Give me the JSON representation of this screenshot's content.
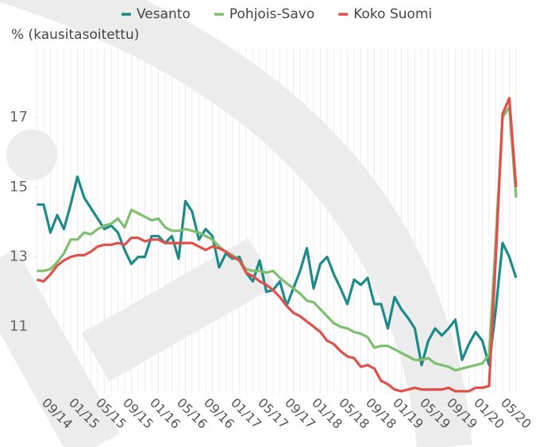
{
  "chart_data": {
    "type": "line",
    "y_label": "% (kausitasoitettu)",
    "categories": [
      null,
      "09/14",
      null,
      null,
      null,
      "01/15",
      null,
      null,
      null,
      "05/15",
      null,
      null,
      null,
      "09/15",
      null,
      null,
      null,
      "01/16",
      null,
      null,
      null,
      "05/16",
      null,
      null,
      null,
      "09/16",
      null,
      null,
      null,
      "01/17",
      null,
      null,
      null,
      "05/17",
      null,
      null,
      null,
      "09/17",
      null,
      null,
      null,
      "01/18",
      null,
      null,
      null,
      "05/18",
      null,
      null,
      null,
      "09/18",
      null,
      null,
      null,
      "01/19",
      null,
      null,
      null,
      "05/19",
      null,
      null,
      null,
      "09/19",
      null,
      null,
      null,
      "01/20",
      null,
      null,
      null,
      "05/20",
      null,
      null
    ],
    "series": [
      {
        "name": "Vesanto",
        "color": "#1b8b8a",
        "values": [
          14.5,
          14.5,
          13.7,
          14.2,
          13.8,
          14.5,
          15.3,
          14.7,
          14.4,
          14.1,
          13.8,
          13.9,
          13.7,
          13.2,
          12.8,
          13.0,
          13.0,
          13.6,
          13.6,
          13.4,
          13.6,
          12.95,
          14.6,
          14.3,
          13.5,
          13.8,
          13.6,
          12.7,
          13.1,
          12.95,
          13.0,
          12.55,
          12.3,
          12.9,
          12.0,
          12.05,
          12.3,
          11.6,
          12.1,
          12.6,
          13.25,
          12.1,
          12.8,
          13.0,
          12.5,
          12.1,
          11.65,
          12.35,
          12.2,
          12.4,
          11.65,
          11.65,
          10.95,
          11.85,
          11.5,
          11.25,
          10.95,
          9.9,
          10.6,
          10.95,
          10.75,
          10.95,
          11.2,
          10.05,
          10.5,
          10.85,
          10.6,
          9.9,
          11.5,
          13.4,
          13.0,
          12.4
        ]
      },
      {
        "name": "Pohjois-Savo",
        "color": "#7dbf6e",
        "values": [
          12.6,
          12.6,
          12.65,
          12.85,
          13.1,
          13.5,
          13.5,
          13.7,
          13.65,
          13.8,
          13.9,
          13.95,
          14.1,
          13.85,
          14.35,
          14.25,
          14.15,
          14.05,
          14.1,
          13.85,
          13.75,
          13.75,
          13.8,
          13.75,
          13.7,
          13.6,
          13.5,
          13.3,
          13.15,
          13.05,
          12.9,
          12.65,
          12.6,
          12.6,
          12.55,
          12.6,
          12.4,
          12.25,
          12.1,
          11.95,
          11.75,
          11.7,
          11.5,
          11.3,
          11.1,
          11.0,
          10.95,
          10.85,
          10.8,
          10.7,
          10.4,
          10.45,
          10.45,
          10.35,
          10.25,
          10.15,
          10.05,
          10.05,
          10.1,
          9.95,
          9.9,
          9.85,
          9.75,
          9.8,
          9.85,
          9.9,
          9.95,
          10.2,
          13.5,
          17.0,
          17.3,
          14.7
        ]
      },
      {
        "name": "Koko Suomi",
        "color": "#e0504a",
        "values": [
          12.35,
          12.3,
          12.5,
          12.75,
          12.9,
          13.0,
          13.05,
          13.05,
          13.15,
          13.3,
          13.35,
          13.35,
          13.4,
          13.35,
          13.55,
          13.55,
          13.45,
          13.5,
          13.5,
          13.4,
          13.4,
          13.4,
          13.4,
          13.4,
          13.3,
          13.2,
          13.3,
          13.25,
          13.15,
          13.0,
          12.9,
          12.55,
          12.45,
          12.3,
          12.2,
          12.05,
          11.85,
          11.6,
          11.4,
          11.3,
          11.15,
          11.0,
          10.85,
          10.6,
          10.5,
          10.3,
          10.15,
          10.1,
          9.85,
          9.9,
          9.8,
          9.45,
          9.35,
          9.2,
          9.15,
          9.2,
          9.25,
          9.2,
          9.2,
          9.2,
          9.2,
          9.25,
          9.15,
          9.15,
          9.15,
          9.25,
          9.25,
          9.3,
          13.0,
          17.1,
          17.55,
          15.0
        ]
      }
    ],
    "ylim": [
      9.1,
      19
    ],
    "yticks": [
      11,
      13,
      15,
      17
    ],
    "grid": true
  }
}
